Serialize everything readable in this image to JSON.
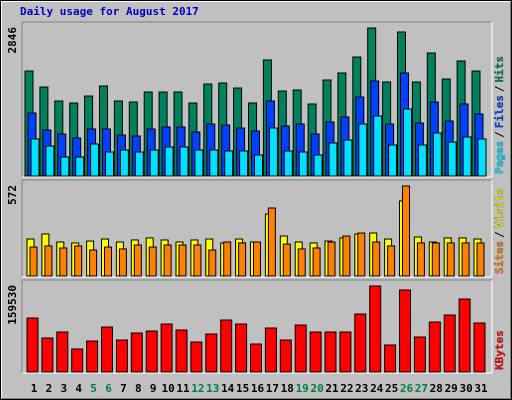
{
  "chart_data": {
    "type": "bar",
    "title": "Daily usage for August 2017",
    "categories": [
      "1",
      "2",
      "3",
      "4",
      "5",
      "6",
      "7",
      "8",
      "9",
      "10",
      "11",
      "12",
      "13",
      "14",
      "15",
      "16",
      "17",
      "18",
      "19",
      "20",
      "21",
      "22",
      "23",
      "24",
      "25",
      "26",
      "27",
      "28",
      "29",
      "30",
      "31"
    ],
    "category_colors": [
      "#000000",
      "#000000",
      "#000000",
      "#000000",
      "#008040",
      "#008040",
      "#000000",
      "#000000",
      "#000000",
      "#000000",
      "#000000",
      "#008040",
      "#008040",
      "#000000",
      "#000000",
      "#000000",
      "#000000",
      "#000000",
      "#008040",
      "#008040",
      "#000000",
      "#000000",
      "#000000",
      "#000000",
      "#000000",
      "#008040",
      "#008040",
      "#000000",
      "#000000",
      "#000000",
      "#000000"
    ],
    "legend_separator": "/",
    "panels": [
      {
        "ylim": [
          0,
          2846
        ],
        "yticks": [
          2846
        ],
        "series": [
          {
            "name": "Hits",
            "color": "#00805c",
            "values": [
              2019,
              1711,
              1442,
              1404,
              1538,
              1731,
              1442,
              1423,
              1615,
              1615,
              1615,
              1404,
              1769,
              1788,
              1692,
              1404,
              2231,
              1635,
              1654,
              1385,
              1846,
              1981,
              2288,
              2846,
              1808,
              2769,
              1808,
              2365,
              1865,
              2212,
              2019
            ]
          },
          {
            "name": "Files",
            "color": "#0040ff",
            "values": [
              1211,
              885,
              808,
              731,
              904,
              904,
              788,
              769,
              904,
              942,
              942,
              846,
              1000,
              981,
              923,
              865,
              1442,
              962,
              1000,
              808,
              1038,
              1135,
              1519,
              1827,
              1000,
              1981,
              1019,
              1423,
              1058,
              1385,
              1192
            ]
          },
          {
            "name": "Pages",
            "color": "#00e0ff",
            "values": [
              712,
              577,
              365,
              365,
              615,
              462,
              500,
              462,
              500,
              558,
              558,
              500,
              500,
              481,
              481,
              404,
              923,
              481,
              462,
              404,
              635,
              692,
              1000,
              1154,
              596,
              1288,
              596,
              827,
              654,
              750,
              712
            ]
          }
        ]
      },
      {
        "ylim": [
          0,
          572
        ],
        "yticks": [
          572
        ],
        "series": [
          {
            "name": "Visits",
            "color": "#ffff00",
            "values": [
              235,
              267,
              216,
              210,
              222,
              235,
              216,
              229,
              242,
              229,
              216,
              229,
              235,
              210,
              235,
              216,
              394,
              254,
              216,
              210,
              222,
              242,
              267,
              273,
              235,
              477,
              248,
              216,
              242,
              242,
              235
            ]
          },
          {
            "name": "Sites",
            "color": "#ff8000",
            "values": [
              184,
              191,
              178,
              191,
              165,
              184,
              172,
              197,
              184,
              197,
              197,
              197,
              165,
              216,
              210,
              216,
              432,
              203,
              172,
              178,
              216,
              254,
              273,
              216,
              191,
              572,
              210,
              210,
              210,
              210,
              210
            ]
          }
        ]
      },
      {
        "ylim": [
          0,
          159530
        ],
        "yticks": [
          159530
        ],
        "series": [
          {
            "name": "KBytes",
            "color": "#ff0000",
            "values": [
              100170,
              63070,
              74200,
              42665,
              57505,
              83475,
              59360,
              72345,
              76055,
              89040,
              77910,
              55650,
              70490,
              96460,
              89040,
              51940,
              81620,
              59360,
              87185,
              74200,
              74200,
              74200,
              107590,
              159530,
              50085,
              152110,
              64925,
              92750,
              105735,
              135415,
              90895
            ]
          }
        ]
      }
    ]
  }
}
